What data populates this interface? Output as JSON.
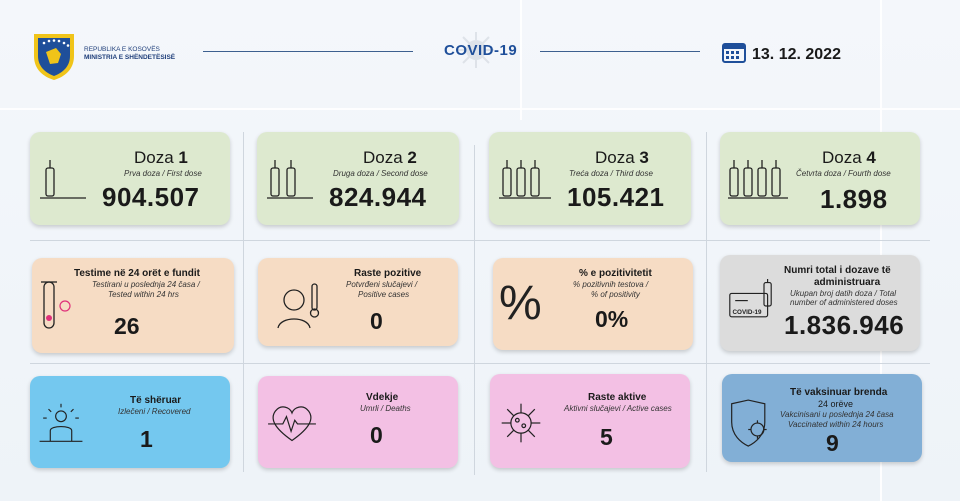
{
  "header": {
    "ministry_line1": "REPUBLIKA E KOSOVËS",
    "ministry_line2": "MINISTRIA E SHËNDETËSISË",
    "title": "COVID-19",
    "date": "13. 12. 2022",
    "icons": [
      "coat-of-arms",
      "virus-icon",
      "calendar-icon"
    ]
  },
  "doses": [
    {
      "label": "Doza",
      "num": "1",
      "sub": "Prva doza / First dose",
      "value": "904.507"
    },
    {
      "label": "Doza",
      "num": "2",
      "sub": "Druga doza / Second dose",
      "value": "824.944"
    },
    {
      "label": "Doza",
      "num": "3",
      "sub": "Treća doza / Third dose",
      "value": "105.421"
    },
    {
      "label": "Doza",
      "num": "4",
      "sub": "Četvrta doza / Fourth dose",
      "value": "1.898"
    }
  ],
  "row2": [
    {
      "title": "Testime në 24 orët e fundit",
      "sub1": "Testirani u poslednja 24 časa /",
      "sub2": "Tested within 24 hrs",
      "value": "26"
    },
    {
      "title": "Raste pozitive",
      "sub1": "Potvrđeni slučajevi /",
      "sub2": "Positive cases",
      "value": "0"
    },
    {
      "title": "% e pozitivitetit",
      "sub1": "% pozitivnih testova /",
      "sub2": "% of positivity",
      "value": "0%"
    },
    {
      "title1": "Numri total i dozave të",
      "title2": "administruara",
      "sub1": "Ukupan broj datih doza / Total",
      "sub2": "number of administered doses",
      "value": "1.836.946",
      "badge": "COVID-19"
    }
  ],
  "row3": [
    {
      "title": "Të shëruar",
      "sub": "Izlečeni / Recovered",
      "value": "1"
    },
    {
      "title": "Vdekje",
      "sub": "Umrli / Deaths",
      "value": "0"
    },
    {
      "title": "Raste aktive",
      "sub": "Aktivni slučajevi / Active cases",
      "value": "5"
    },
    {
      "title1": "Të vaksinuar brenda",
      "title2": "24 orëve",
      "sub1": "Vakcinisani u poslednja 24 časa",
      "sub2": "Vaccinated within 24 hours",
      "value": "9"
    }
  ],
  "colors": {
    "green": "#dde9cf",
    "peach": "#f6dcc4",
    "gray": "#dcdcdc",
    "blue": "#74c8ef",
    "pink": "#f3c0e4",
    "steel": "#82afd6",
    "accent": "#1f4f9a"
  }
}
